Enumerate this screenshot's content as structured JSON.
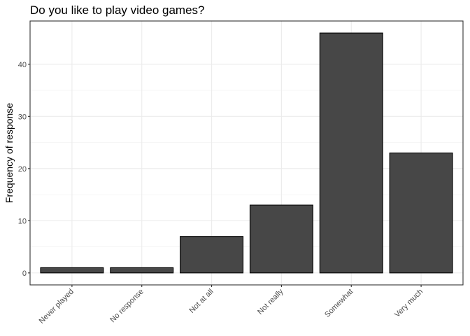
{
  "chart_data": {
    "type": "bar",
    "title": "Do you like to play video games?",
    "xlabel": "",
    "ylabel": "Frequency of response",
    "categories": [
      "Never played",
      "No response",
      "Not at all",
      "Not really",
      "Somewhat",
      "Very much"
    ],
    "values": [
      1,
      1,
      7,
      13,
      46,
      23
    ],
    "ylim": [
      -2.3,
      48.3
    ],
    "yticks": [
      0,
      10,
      20,
      30,
      40
    ],
    "ytick_labels": [
      "0",
      "10",
      "20",
      "30",
      "40"
    ],
    "grid": true,
    "legend": "none",
    "colors": {
      "bar_fill": "#474747",
      "bar_stroke": "#000000",
      "panel_border": "#333333",
      "grid": "#ebebeb",
      "background": "#ffffff"
    }
  }
}
